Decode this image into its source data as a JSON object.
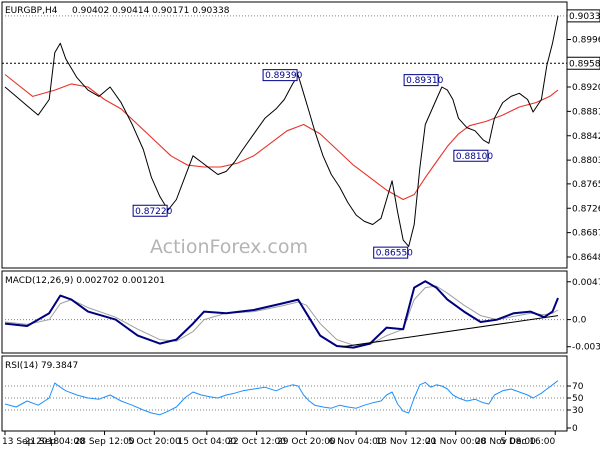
{
  "chart_data": {
    "type": "candlestick",
    "symbol": "EURGBP,H4",
    "ohlc_text": "0.90402 0.90414 0.90171 0.90338",
    "watermark": "ActionForex.com",
    "colors": {
      "line": "#000000",
      "ma": "#e8322b",
      "macd": "#000080",
      "signal": "#a0a0a0",
      "rsi": "#1e90ff",
      "box": "#00008b"
    },
    "price_axis": {
      "ylim": [
        0.864,
        0.904
      ],
      "ticks": [
        "0.89960",
        "0.89580",
        "0.89200",
        "0.88810",
        "0.88420",
        "0.88030",
        "0.87650",
        "0.87260",
        "0.86870",
        "0.86480"
      ],
      "current_price": "0.90338"
    },
    "x_ticks": [
      "13 Sep 2018",
      "21 Sep 04:00",
      "28 Sep 12:00",
      "5 Oct 20:00",
      "15 Oct 04:00",
      "22 Oct 12:00",
      "29 Oct 20:00",
      "6 Nov 04:00",
      "13 Nov 12:00",
      "21 Nov 00:00",
      "28 Nov 08:00",
      "5 Dec 16:00"
    ],
    "x_tick_fracs": [
      0,
      0.09,
      0.18,
      0.27,
      0.365,
      0.455,
      0.545,
      0.635,
      0.725,
      0.815,
      0.905,
      0.995
    ],
    "price_path": [
      [
        0.0,
        0.892
      ],
      [
        0.02,
        0.8905
      ],
      [
        0.04,
        0.889
      ],
      [
        0.06,
        0.8875
      ],
      [
        0.08,
        0.89
      ],
      [
        0.09,
        0.8975
      ],
      [
        0.1,
        0.899
      ],
      [
        0.11,
        0.8965
      ],
      [
        0.13,
        0.8935
      ],
      [
        0.15,
        0.8915
      ],
      [
        0.17,
        0.8905
      ],
      [
        0.19,
        0.892
      ],
      [
        0.21,
        0.8895
      ],
      [
        0.23,
        0.886
      ],
      [
        0.25,
        0.882
      ],
      [
        0.265,
        0.8775
      ],
      [
        0.28,
        0.8745
      ],
      [
        0.295,
        0.8723
      ],
      [
        0.31,
        0.874
      ],
      [
        0.325,
        0.8775
      ],
      [
        0.34,
        0.881
      ],
      [
        0.355,
        0.88
      ],
      [
        0.37,
        0.879
      ],
      [
        0.385,
        0.878
      ],
      [
        0.4,
        0.8785
      ],
      [
        0.415,
        0.88
      ],
      [
        0.43,
        0.882
      ],
      [
        0.45,
        0.8845
      ],
      [
        0.47,
        0.887
      ],
      [
        0.49,
        0.8885
      ],
      [
        0.505,
        0.89
      ],
      [
        0.52,
        0.8925
      ],
      [
        0.53,
        0.8939
      ],
      [
        0.54,
        0.891
      ],
      [
        0.55,
        0.888
      ],
      [
        0.56,
        0.885
      ],
      [
        0.575,
        0.881
      ],
      [
        0.59,
        0.878
      ],
      [
        0.605,
        0.876
      ],
      [
        0.62,
        0.8735
      ],
      [
        0.635,
        0.8715
      ],
      [
        0.65,
        0.8705
      ],
      [
        0.665,
        0.87
      ],
      [
        0.68,
        0.871
      ],
      [
        0.69,
        0.874
      ],
      [
        0.7,
        0.877
      ],
      [
        0.71,
        0.872
      ],
      [
        0.72,
        0.8675
      ],
      [
        0.73,
        0.8665
      ],
      [
        0.74,
        0.87
      ],
      [
        0.75,
        0.879
      ],
      [
        0.76,
        0.886
      ],
      [
        0.77,
        0.888
      ],
      [
        0.78,
        0.89
      ],
      [
        0.79,
        0.892
      ],
      [
        0.8,
        0.8915
      ],
      [
        0.81,
        0.89
      ],
      [
        0.82,
        0.887
      ],
      [
        0.835,
        0.8855
      ],
      [
        0.85,
        0.885
      ],
      [
        0.865,
        0.8835
      ],
      [
        0.875,
        0.883
      ],
      [
        0.885,
        0.887
      ],
      [
        0.9,
        0.8895
      ],
      [
        0.915,
        0.8905
      ],
      [
        0.93,
        0.891
      ],
      [
        0.945,
        0.89
      ],
      [
        0.955,
        0.888
      ],
      [
        0.97,
        0.89
      ],
      [
        0.98,
        0.8955
      ],
      [
        0.99,
        0.899
      ],
      [
        1.0,
        0.9034
      ]
    ],
    "ma_path": [
      [
        0.0,
        0.894
      ],
      [
        0.05,
        0.8905
      ],
      [
        0.09,
        0.8915
      ],
      [
        0.12,
        0.8925
      ],
      [
        0.15,
        0.892
      ],
      [
        0.18,
        0.89
      ],
      [
        0.21,
        0.8885
      ],
      [
        0.24,
        0.886
      ],
      [
        0.27,
        0.8835
      ],
      [
        0.3,
        0.881
      ],
      [
        0.33,
        0.8795
      ],
      [
        0.36,
        0.8792
      ],
      [
        0.39,
        0.8792
      ],
      [
        0.42,
        0.8798
      ],
      [
        0.45,
        0.881
      ],
      [
        0.48,
        0.883
      ],
      [
        0.51,
        0.885
      ],
      [
        0.54,
        0.886
      ],
      [
        0.57,
        0.8845
      ],
      [
        0.6,
        0.882
      ],
      [
        0.63,
        0.8795
      ],
      [
        0.66,
        0.8775
      ],
      [
        0.69,
        0.8755
      ],
      [
        0.72,
        0.874
      ],
      [
        0.74,
        0.8748
      ],
      [
        0.76,
        0.8775
      ],
      [
        0.78,
        0.88
      ],
      [
        0.8,
        0.8825
      ],
      [
        0.82,
        0.8845
      ],
      [
        0.84,
        0.8858
      ],
      [
        0.87,
        0.8865
      ],
      [
        0.9,
        0.8875
      ],
      [
        0.93,
        0.8888
      ],
      [
        0.96,
        0.8895
      ],
      [
        0.985,
        0.8905
      ],
      [
        1.0,
        0.8915
      ]
    ],
    "resistance_level": 0.8958,
    "labels": [
      {
        "text": "0.89390",
        "x": 0.53,
        "y": 0.8939
      },
      {
        "text": "0.87220",
        "x": 0.295,
        "y": 0.8722
      },
      {
        "text": "0.86550",
        "x": 0.73,
        "y": 0.8655
      },
      {
        "text": "0.89310",
        "x": 0.785,
        "y": 0.8931
      },
      {
        "text": "0.88100",
        "x": 0.875,
        "y": 0.881
      }
    ],
    "macd": {
      "title": "MACD(12,26,9) 0.002702 0.001201",
      "ylim": [
        -0.0038,
        0.0052
      ],
      "ticks": [
        "0.004729",
        "0.0",
        "-0.003391"
      ],
      "path": [
        [
          0.0,
          -0.0005
        ],
        [
          0.04,
          -0.0008
        ],
        [
          0.08,
          0.0008
        ],
        [
          0.1,
          0.003
        ],
        [
          0.12,
          0.0025
        ],
        [
          0.15,
          0.001
        ],
        [
          0.2,
          0.0
        ],
        [
          0.24,
          -0.002
        ],
        [
          0.28,
          -0.003
        ],
        [
          0.31,
          -0.0025
        ],
        [
          0.34,
          -0.0005
        ],
        [
          0.36,
          0.001
        ],
        [
          0.4,
          0.0008
        ],
        [
          0.45,
          0.0012
        ],
        [
          0.5,
          0.002
        ],
        [
          0.53,
          0.0025
        ],
        [
          0.545,
          0.0008
        ],
        [
          0.57,
          -0.002
        ],
        [
          0.6,
          -0.0033
        ],
        [
          0.63,
          -0.0035
        ],
        [
          0.66,
          -0.003
        ],
        [
          0.69,
          -0.001
        ],
        [
          0.72,
          -0.0012
        ],
        [
          0.74,
          0.004
        ],
        [
          0.76,
          0.0048
        ],
        [
          0.78,
          0.004
        ],
        [
          0.8,
          0.0025
        ],
        [
          0.83,
          0.001
        ],
        [
          0.86,
          -0.0003
        ],
        [
          0.89,
          0.0
        ],
        [
          0.92,
          0.0008
        ],
        [
          0.95,
          0.001
        ],
        [
          0.975,
          0.0003
        ],
        [
          0.99,
          0.001
        ],
        [
          1.0,
          0.0027
        ]
      ],
      "signal_path": [
        [
          0.0,
          -0.0003
        ],
        [
          0.04,
          -0.0006
        ],
        [
          0.08,
          0.0
        ],
        [
          0.1,
          0.002
        ],
        [
          0.12,
          0.0025
        ],
        [
          0.15,
          0.0015
        ],
        [
          0.2,
          0.0003
        ],
        [
          0.24,
          -0.0012
        ],
        [
          0.28,
          -0.0025
        ],
        [
          0.31,
          -0.0027
        ],
        [
          0.34,
          -0.0015
        ],
        [
          0.36,
          0.0
        ],
        [
          0.4,
          0.0008
        ],
        [
          0.45,
          0.001
        ],
        [
          0.5,
          0.0017
        ],
        [
          0.53,
          0.0022
        ],
        [
          0.545,
          0.0018
        ],
        [
          0.57,
          -0.0005
        ],
        [
          0.6,
          -0.0025
        ],
        [
          0.63,
          -0.0032
        ],
        [
          0.66,
          -0.0031
        ],
        [
          0.69,
          -0.002
        ],
        [
          0.72,
          -0.0012
        ],
        [
          0.74,
          0.0025
        ],
        [
          0.76,
          0.004
        ],
        [
          0.78,
          0.0042
        ],
        [
          0.8,
          0.0033
        ],
        [
          0.83,
          0.0018
        ],
        [
          0.86,
          0.0005
        ],
        [
          0.89,
          0.0
        ],
        [
          0.92,
          0.0004
        ],
        [
          0.95,
          0.0008
        ],
        [
          0.975,
          0.0006
        ],
        [
          0.99,
          0.0008
        ],
        [
          1.0,
          0.0012
        ]
      ],
      "trendline": [
        [
          0.61,
          -0.0034
        ],
        [
          1.0,
          0.0005
        ]
      ]
    },
    "rsi": {
      "title": "RSI(14) 79.3847",
      "ylim": [
        0,
        100
      ],
      "ticks": [
        "70",
        "50",
        "30",
        "0"
      ],
      "levels": [
        70,
        50,
        30
      ],
      "path": [
        [
          0.0,
          40
        ],
        [
          0.02,
          35
        ],
        [
          0.04,
          45
        ],
        [
          0.06,
          38
        ],
        [
          0.08,
          50
        ],
        [
          0.09,
          75
        ],
        [
          0.1,
          68
        ],
        [
          0.11,
          62
        ],
        [
          0.13,
          55
        ],
        [
          0.15,
          50
        ],
        [
          0.17,
          48
        ],
        [
          0.19,
          55
        ],
        [
          0.21,
          45
        ],
        [
          0.23,
          38
        ],
        [
          0.25,
          30
        ],
        [
          0.265,
          25
        ],
        [
          0.28,
          22
        ],
        [
          0.295,
          28
        ],
        [
          0.31,
          35
        ],
        [
          0.325,
          50
        ],
        [
          0.34,
          60
        ],
        [
          0.355,
          55
        ],
        [
          0.37,
          52
        ],
        [
          0.385,
          50
        ],
        [
          0.4,
          55
        ],
        [
          0.415,
          58
        ],
        [
          0.43,
          62
        ],
        [
          0.45,
          65
        ],
        [
          0.47,
          68
        ],
        [
          0.49,
          62
        ],
        [
          0.505,
          68
        ],
        [
          0.52,
          72
        ],
        [
          0.53,
          70
        ],
        [
          0.54,
          55
        ],
        [
          0.55,
          45
        ],
        [
          0.56,
          38
        ],
        [
          0.575,
          35
        ],
        [
          0.59,
          33
        ],
        [
          0.605,
          38
        ],
        [
          0.62,
          35
        ],
        [
          0.635,
          33
        ],
        [
          0.65,
          38
        ],
        [
          0.665,
          42
        ],
        [
          0.68,
          45
        ],
        [
          0.69,
          55
        ],
        [
          0.7,
          60
        ],
        [
          0.71,
          40
        ],
        [
          0.72,
          28
        ],
        [
          0.73,
          25
        ],
        [
          0.74,
          50
        ],
        [
          0.75,
          72
        ],
        [
          0.76,
          76
        ],
        [
          0.77,
          68
        ],
        [
          0.78,
          72
        ],
        [
          0.79,
          70
        ],
        [
          0.8,
          65
        ],
        [
          0.81,
          55
        ],
        [
          0.82,
          50
        ],
        [
          0.835,
          45
        ],
        [
          0.85,
          48
        ],
        [
          0.865,
          42
        ],
        [
          0.875,
          40
        ],
        [
          0.885,
          55
        ],
        [
          0.9,
          62
        ],
        [
          0.915,
          65
        ],
        [
          0.93,
          60
        ],
        [
          0.945,
          55
        ],
        [
          0.955,
          50
        ],
        [
          0.97,
          58
        ],
        [
          0.98,
          65
        ],
        [
          0.99,
          72
        ],
        [
          1.0,
          79
        ]
      ]
    }
  }
}
